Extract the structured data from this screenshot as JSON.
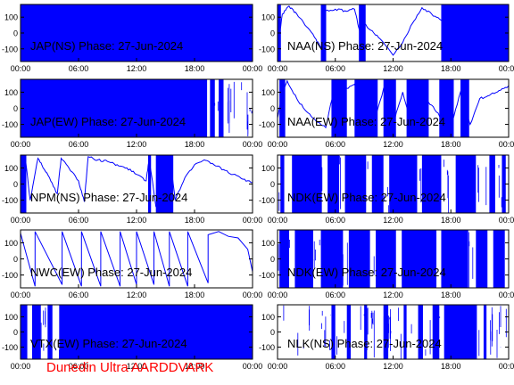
{
  "footer": {
    "text": "Dunedin Ultra AARDDVARK",
    "color": "#ff0000"
  },
  "colors": {
    "trace": "#0000ff",
    "axis": "#000000",
    "background": "#ffffff"
  },
  "chart_data": [
    {
      "type": "line",
      "title": "JAP(NS) Phase: 27-Jun-2024",
      "x_ticks": [
        "00:00",
        "06:00",
        "12:00",
        "18:00",
        "00:00"
      ],
      "y_ticks": [
        100,
        0,
        -100
      ],
      "ylim": [
        -180,
        180
      ],
      "xlim_hours": [
        0,
        24
      ],
      "pattern": "noise",
      "x": [
        0,
        24
      ],
      "y": [
        -180,
        180
      ]
    },
    {
      "type": "line",
      "title": "NAA(NS) Phase: 27-Jun-2024",
      "x_ticks": [
        "00:00",
        "06:00",
        "12:00",
        "18:00",
        "00:00"
      ],
      "y_ticks": [
        100,
        0,
        -100
      ],
      "ylim": [
        -180,
        180
      ],
      "xlim_hours": [
        0,
        24
      ],
      "pattern": "trace",
      "x": [
        0,
        0.5,
        1.2,
        2.0,
        3.0,
        4.0,
        4.6,
        5.0,
        6.0,
        7.0,
        8.0,
        8.5,
        9.0,
        10.0,
        11.0,
        12.0,
        13.0,
        14.0,
        15.0,
        16.0,
        17.0,
        18.0,
        19.0,
        20.0,
        21.0,
        22.0,
        23.0,
        24.0
      ],
      "y": [
        -100,
        120,
        170,
        120,
        40,
        -40,
        -100,
        140,
        150,
        140,
        150,
        20,
        60,
        0,
        -60,
        -140,
        -60,
        60,
        160,
        120,
        80,
        30,
        0,
        -40,
        -90,
        -120,
        -150,
        -170
      ],
      "bands_hours": [
        [
          0.0,
          0.35
        ],
        [
          4.5,
          5.05
        ],
        [
          8.45,
          9.15
        ],
        [
          17.0,
          24.0
        ]
      ]
    },
    {
      "type": "line",
      "title": "JAP(EW) Phase: 27-Jun-2024",
      "x_ticks": [
        "00:00",
        "06:00",
        "12:00",
        "18:00",
        "00:00"
      ],
      "y_ticks": [
        100,
        0,
        -100
      ],
      "ylim": [
        -180,
        180
      ],
      "xlim_hours": [
        0,
        24
      ],
      "pattern": "noise-gappy",
      "x": [
        0,
        24
      ],
      "y": [
        -180,
        180
      ],
      "bands_hours": [
        [
          0.0,
          19.3
        ],
        [
          19.6,
          20.1
        ],
        [
          20.5,
          21.0
        ]
      ]
    },
    {
      "type": "line",
      "title": "NAA(EW) Phase: 27-Jun-2024",
      "x_ticks": [
        "00:00",
        "06:00",
        "12:00",
        "18:00",
        "00:00"
      ],
      "y_ticks": [
        100,
        0,
        -100
      ],
      "ylim": [
        -180,
        180
      ],
      "xlim_hours": [
        0,
        24
      ],
      "pattern": "trace",
      "x": [
        0,
        0.5,
        1.0,
        2.0,
        3.0,
        4.0,
        5.0,
        6.0,
        7.0,
        8.0,
        9.0,
        10.0,
        11.0,
        12.0,
        13.0,
        14.0,
        15.0,
        16.0,
        17.0,
        18.0,
        19.0,
        20.0,
        21.0,
        22.0,
        23.0,
        24.0
      ],
      "y": [
        -60,
        100,
        170,
        60,
        -20,
        -80,
        -120,
        160,
        120,
        150,
        40,
        -100,
        120,
        -100,
        100,
        -120,
        80,
        20,
        -60,
        -120,
        100,
        -100,
        60,
        80,
        110,
        140
      ],
      "bands_hours": [
        [
          0.2,
          0.8
        ],
        [
          5.6,
          7.2
        ],
        [
          8.0,
          10.4
        ],
        [
          11.0,
          12.3
        ],
        [
          13.4,
          15.7
        ],
        [
          16.8,
          18.3
        ],
        [
          19.0,
          19.9
        ]
      ]
    },
    {
      "type": "line",
      "title": "NPM(NS) Phase: 27-Jun-2024",
      "x_ticks": [
        "00:00",
        "06:00",
        "12:00",
        "18:00",
        "00:00"
      ],
      "y_ticks": [
        100,
        0,
        -100
      ],
      "ylim": [
        -180,
        180
      ],
      "xlim_hours": [
        0,
        24
      ],
      "pattern": "trace",
      "x": [
        0,
        0.5,
        1.0,
        1.8,
        2.2,
        3.0,
        3.8,
        4.2,
        5.0,
        6.0,
        6.6,
        7.0,
        8.0,
        9.0,
        10.0,
        11.0,
        12.0,
        13.0,
        13.3,
        14.0,
        15.0,
        15.5,
        16.0,
        17.0,
        18.0,
        19.0,
        20.0,
        21.0,
        22.0,
        23.0,
        24.0
      ],
      "y": [
        20,
        160,
        -100,
        160,
        120,
        40,
        -60,
        160,
        100,
        20,
        -110,
        170,
        150,
        140,
        120,
        100,
        60,
        20,
        160,
        -140,
        -170,
        160,
        -100,
        40,
        120,
        150,
        120,
        90,
        60,
        30,
        10
      ],
      "bands_hours": [
        [
          0.0,
          0.6
        ],
        [
          13.2,
          13.5
        ],
        [
          14.0,
          15.8
        ]
      ]
    },
    {
      "type": "line",
      "title": "NDK(EW) Phase: 27-Jun-2024",
      "x_ticks": [
        "00:00",
        "06:00",
        "12:00",
        "18:00",
        "00:00"
      ],
      "y_ticks": [
        100,
        0,
        -100
      ],
      "ylim": [
        -180,
        180
      ],
      "xlim_hours": [
        0,
        24
      ],
      "pattern": "noise-gappy",
      "x": [
        0,
        24
      ],
      "y": [
        -180,
        180
      ],
      "bands_hours": [
        [
          0.3,
          0.7
        ],
        [
          1.5,
          4.6
        ],
        [
          5.2,
          6.4
        ],
        [
          7.0,
          9.2
        ],
        [
          9.8,
          11.0
        ],
        [
          11.6,
          14.5
        ],
        [
          15.0,
          17.0
        ],
        [
          18.5,
          20.6
        ],
        [
          22.0,
          22.6
        ],
        [
          23.3,
          23.7
        ]
      ]
    },
    {
      "type": "line",
      "title": "NWC(EW) Phase: 27-Jun-2024",
      "x_ticks": [
        "00:00",
        "06:00",
        "12:00",
        "18:00",
        "00:00"
      ],
      "y_ticks": [
        100,
        0,
        -100
      ],
      "ylim": [
        -180,
        180
      ],
      "xlim_hours": [
        0,
        24
      ],
      "pattern": "sawtooth",
      "x": [
        0,
        1.5,
        1.5,
        4.3,
        4.3,
        6.3,
        6.3,
        8.3,
        8.3,
        10.3,
        10.3,
        12.0,
        12.0,
        13.8,
        13.8,
        15.4,
        15.4,
        17.3,
        17.3,
        19.4,
        19.4,
        20.5,
        21.5,
        22.5,
        23.5,
        24.0
      ],
      "y": [
        160,
        -170,
        170,
        -160,
        170,
        -170,
        170,
        -170,
        170,
        -170,
        170,
        -160,
        170,
        -160,
        170,
        -170,
        170,
        -170,
        170,
        -150,
        150,
        170,
        140,
        130,
        60,
        -80
      ]
    },
    {
      "type": "line",
      "title": "NDK(EW) Phase: 27-Jun-2024",
      "x_ticks": [
        "00:00",
        "06:00",
        "12:00",
        "18:00",
        "00:00"
      ],
      "y_ticks": [
        100,
        0,
        -100
      ],
      "ylim": [
        -180,
        180
      ],
      "xlim_hours": [
        0,
        24
      ],
      "pattern": "noise-gappy",
      "x": [
        0,
        24
      ],
      "y": [
        -180,
        180
      ],
      "bands_hours": [
        [
          0.2,
          1.2
        ],
        [
          1.8,
          3.7
        ],
        [
          4.5,
          6.8
        ],
        [
          7.4,
          9.6
        ],
        [
          10.2,
          12.3
        ],
        [
          12.9,
          16.5
        ],
        [
          17.0,
          19.8
        ],
        [
          20.6,
          21.8
        ],
        [
          22.4,
          23.6
        ]
      ]
    },
    {
      "type": "line",
      "title": "VTX(EW) Phase: 27-Jun-2024",
      "x_ticks": [
        "00:00",
        "06:00",
        "12:00",
        "18:00",
        "00:00"
      ],
      "y_ticks": [
        100,
        0,
        -100
      ],
      "ylim": [
        -180,
        180
      ],
      "xlim_hours": [
        0,
        24
      ],
      "pattern": "noise-gappy",
      "x": [
        0,
        24
      ],
      "y": [
        -180,
        180
      ],
      "bands_hours": [
        [
          0.0,
          0.7
        ],
        [
          1.2,
          2.1
        ],
        [
          2.8,
          3.3
        ],
        [
          4.0,
          24.0
        ]
      ]
    },
    {
      "type": "line",
      "title": "NLK(NS) Phase: 27-Jun-2024",
      "x_ticks": [
        "00:00",
        "06:00",
        "12:00",
        "18:00",
        "00:00"
      ],
      "y_ticks": [
        100,
        0,
        -100
      ],
      "ylim": [
        -180,
        180
      ],
      "xlim_hours": [
        0,
        24
      ],
      "pattern": "noise-gappy",
      "x": [
        0,
        24
      ],
      "y": [
        -180,
        180
      ],
      "bands_hours": [
        [
          5.6,
          6.0
        ],
        [
          7.2,
          7.6
        ],
        [
          9.0,
          9.3
        ],
        [
          11.0,
          11.5
        ],
        [
          13.1,
          13.4
        ],
        [
          14.6,
          15.1
        ],
        [
          16.1,
          16.8
        ],
        [
          17.3,
          20.7
        ],
        [
          21.4,
          21.7
        ]
      ]
    }
  ]
}
